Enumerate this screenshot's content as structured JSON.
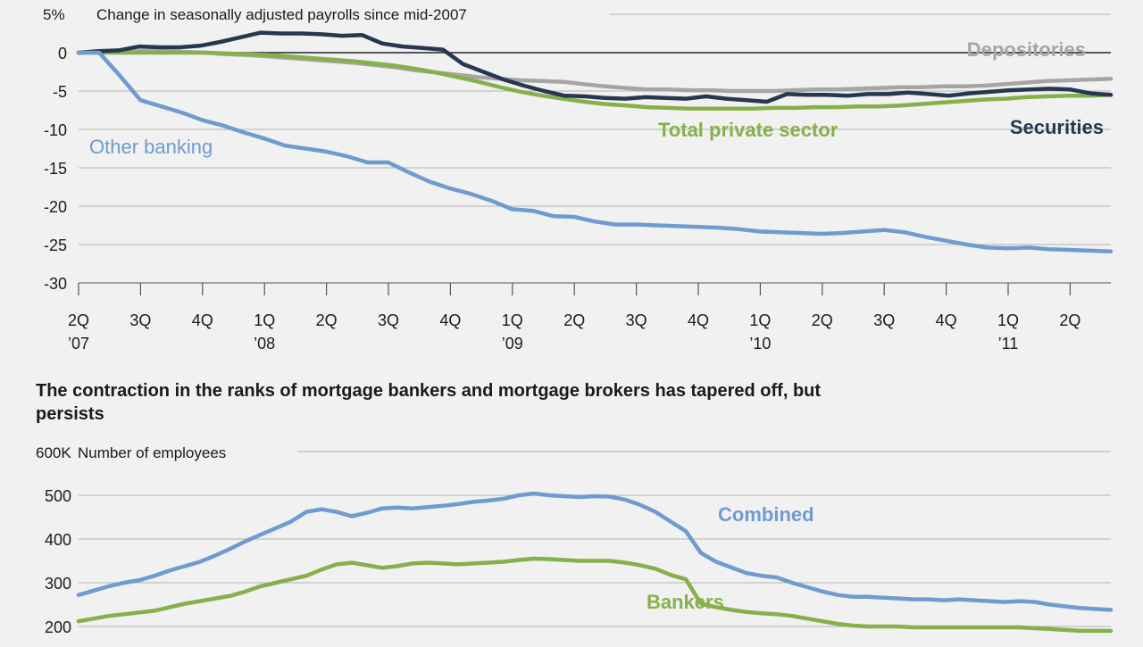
{
  "colors": {
    "background": "#f1f1f1",
    "other_banking": "#6f9bd1",
    "total_private": "#86b04a",
    "securities": "#26374f",
    "depositories": "#a5a5a5",
    "combined": "#6f9bd1",
    "bankers": "#86b04a",
    "grid": "#b3b3b3",
    "text": "#1a1a1a"
  },
  "chart_data": [
    {
      "type": "line",
      "title": "Change in seasonally adjusted payrolls since mid-2007",
      "top_tick_prefix": "5%",
      "ylim": [
        -30,
        5
      ],
      "y_ticks": [
        "0",
        "-5",
        "-10",
        "-15",
        "-20",
        "-25",
        "-30"
      ],
      "y_tick_values": [
        0,
        -5,
        -10,
        -15,
        -20,
        -25,
        -30
      ],
      "grid": true,
      "x_ticks": [
        {
          "q": "2Q",
          "y": "’07"
        },
        {
          "q": "3Q",
          "y": ""
        },
        {
          "q": "4Q",
          "y": ""
        },
        {
          "q": "1Q",
          "y": "’08"
        },
        {
          "q": "2Q",
          "y": ""
        },
        {
          "q": "3Q",
          "y": ""
        },
        {
          "q": "4Q",
          "y": ""
        },
        {
          "q": "1Q",
          "y": "’09"
        },
        {
          "q": "2Q",
          "y": ""
        },
        {
          "q": "3Q",
          "y": ""
        },
        {
          "q": "4Q",
          "y": ""
        },
        {
          "q": "1Q",
          "y": "’10"
        },
        {
          "q": "2Q",
          "y": ""
        },
        {
          "q": "3Q",
          "y": ""
        },
        {
          "q": "4Q",
          "y": ""
        },
        {
          "q": "1Q",
          "y": "’11"
        },
        {
          "q": "2Q",
          "y": ""
        }
      ],
      "series": [
        {
          "name": "Depositories",
          "color": "#a5a5a5",
          "values": [
            0,
            0.1,
            0.1,
            0.2,
            0.2,
            0.1,
            0,
            -0.2,
            -0.3,
            -0.5,
            -0.7,
            -0.9,
            -1.1,
            -1.3,
            -1.6,
            -1.9,
            -2.3,
            -2.6,
            -2.9,
            -3.2,
            -3.4,
            -3.6,
            -3.7,
            -3.8,
            -4.1,
            -4.4,
            -4.6,
            -4.8,
            -4.8,
            -4.9,
            -4.9,
            -5.0,
            -5.0,
            -5.0,
            -4.9,
            -4.8,
            -4.8,
            -4.7,
            -4.6,
            -4.5,
            -4.5,
            -4.4,
            -4.4,
            -4.3,
            -4.1,
            -3.9,
            -3.7,
            -3.6,
            -3.5,
            -3.4
          ]
        },
        {
          "name": "Total private sector",
          "color": "#86b04a",
          "values": [
            0,
            0,
            0,
            0,
            0,
            0,
            0,
            -0.1,
            -0.2,
            -0.3,
            -0.5,
            -0.7,
            -0.9,
            -1.1,
            -1.4,
            -1.7,
            -2.1,
            -2.6,
            -3.2,
            -3.8,
            -4.5,
            -5.1,
            -5.6,
            -6.0,
            -6.4,
            -6.7,
            -6.9,
            -7.1,
            -7.2,
            -7.3,
            -7.3,
            -7.3,
            -7.3,
            -7.2,
            -7.2,
            -7.1,
            -7.1,
            -7.0,
            -7.0,
            -6.9,
            -6.7,
            -6.5,
            -6.3,
            -6.1,
            -6.0,
            -5.8,
            -5.7,
            -5.6,
            -5.6,
            -5.5
          ]
        },
        {
          "name": "Securities",
          "color": "#26374f",
          "values": [
            0,
            0.2,
            0.3,
            0.8,
            0.7,
            0.7,
            0.9,
            1.4,
            2.0,
            2.6,
            2.5,
            2.5,
            2.4,
            2.2,
            2.3,
            1.2,
            0.8,
            0.6,
            0.4,
            -1.5,
            -2.5,
            -3.5,
            -4.3,
            -5.0,
            -5.6,
            -5.7,
            -5.9,
            -6.0,
            -5.8,
            -5.9,
            -6.0,
            -5.7,
            -6.0,
            -6.2,
            -6.4,
            -5.4,
            -5.5,
            -5.5,
            -5.6,
            -5.4,
            -5.4,
            -5.2,
            -5.4,
            -5.6,
            -5.3,
            -5.1,
            -4.9,
            -4.8,
            -4.7,
            -4.8,
            -5.3,
            -5.5
          ]
        },
        {
          "name": "Other banking",
          "color": "#6f9bd1",
          "values": [
            0,
            0,
            -3.0,
            -6.2,
            -7.0,
            -7.8,
            -8.8,
            -9.5,
            -10.4,
            -11.2,
            -12.1,
            -12.5,
            -12.9,
            -13.5,
            -14.3,
            -14.3,
            -15.6,
            -16.8,
            -17.7,
            -18.4,
            -19.3,
            -20.4,
            -20.6,
            -21.3,
            -21.4,
            -22.0,
            -22.4,
            -22.4,
            -22.5,
            -22.6,
            -22.7,
            -22.8,
            -23.0,
            -23.3,
            -23.4,
            -23.5,
            -23.6,
            -23.5,
            -23.3,
            -23.1,
            -23.4,
            -24.0,
            -24.5,
            -25.0,
            -25.4,
            -25.5,
            -25.4,
            -25.6,
            -25.7,
            -25.8,
            -25.9
          ]
        }
      ]
    },
    {
      "type": "line",
      "heading": "The contraction in the ranks of mortgage bankers and mortgage brokers has tapered off, but persists",
      "title": "Number of employees",
      "top_tick_prefix": "600K",
      "ylim": [
        200,
        600
      ],
      "y_ticks": [
        "500",
        "400",
        "300",
        "200"
      ],
      "y_tick_values": [
        500,
        400,
        300,
        200
      ],
      "grid": true,
      "series": [
        {
          "name": "Combined",
          "color": "#6f9bd1",
          "values": [
            272,
            282,
            292,
            300,
            306,
            316,
            328,
            338,
            348,
            362,
            378,
            395,
            410,
            425,
            440,
            462,
            468,
            462,
            452,
            460,
            470,
            472,
            470,
            473,
            476,
            480,
            485,
            488,
            492,
            500,
            504,
            500,
            498,
            496,
            498,
            497,
            490,
            478,
            462,
            440,
            418,
            368,
            348,
            335,
            322,
            316,
            312,
            300,
            290,
            280,
            272,
            268,
            268,
            266,
            264,
            262,
            262,
            260,
            262,
            260,
            258,
            256,
            258,
            256,
            250,
            246,
            242,
            240,
            238
          ]
        },
        {
          "name": "Bankers",
          "color": "#86b04a",
          "values": [
            212,
            218,
            224,
            228,
            232,
            236,
            244,
            252,
            258,
            264,
            270,
            280,
            292,
            300,
            308,
            316,
            330,
            342,
            346,
            340,
            334,
            338,
            344,
            346,
            344,
            342,
            344,
            346,
            348,
            352,
            355,
            354,
            352,
            350,
            350,
            350,
            346,
            340,
            332,
            318,
            308,
            252,
            244,
            238,
            233,
            230,
            228,
            224,
            218,
            212,
            206,
            202,
            200,
            200,
            200,
            198,
            198,
            198,
            198,
            198,
            198,
            198,
            198,
            196,
            194,
            192,
            190,
            190,
            190
          ]
        }
      ]
    }
  ]
}
